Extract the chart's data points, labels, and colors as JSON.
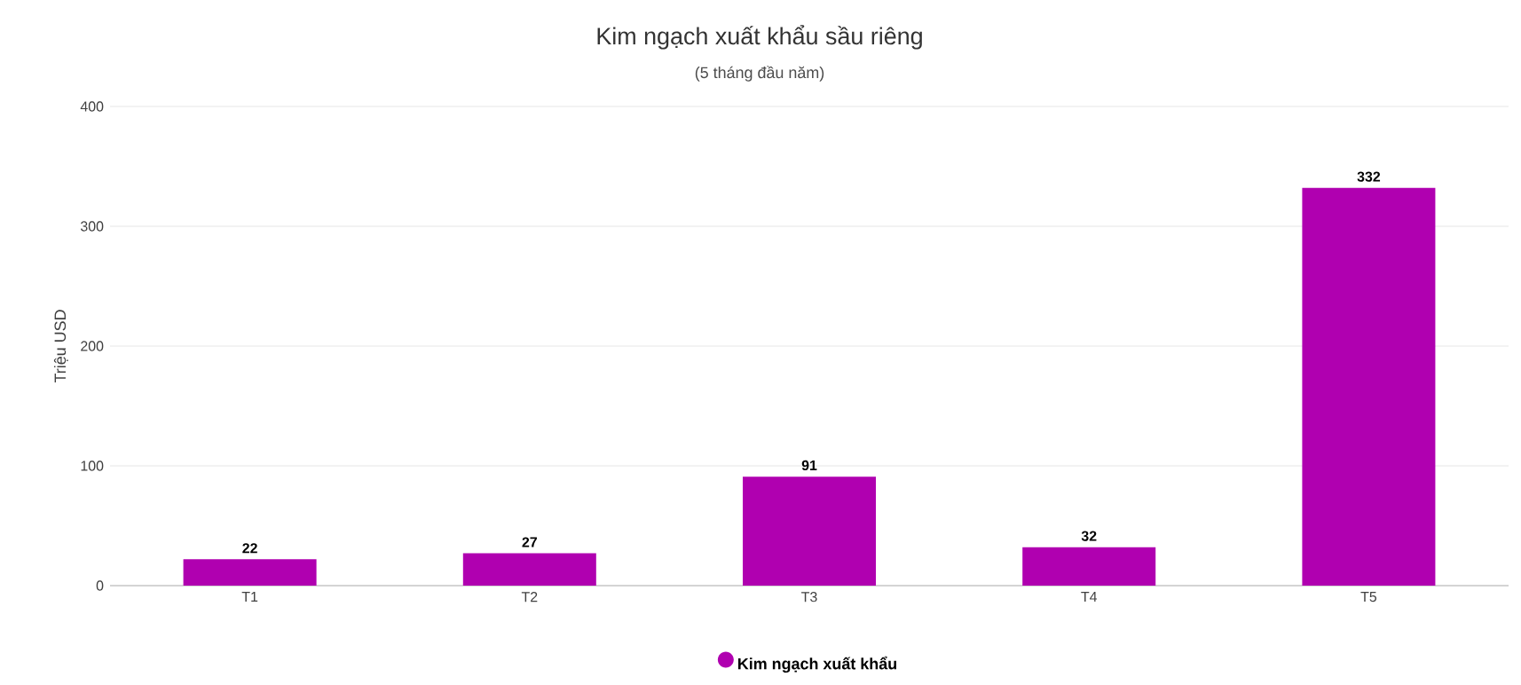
{
  "chart_data": {
    "type": "bar",
    "title": "Kim ngạch xuất khẩu sầu riêng",
    "subtitle": "(5 tháng đầu năm)",
    "ylabel": "Triệu USD",
    "categories": [
      "T1",
      "T2",
      "T3",
      "T4",
      "T5"
    ],
    "series": [
      {
        "name": "Kim ngạch xuất khẩu",
        "color": "#b000b0",
        "values": [
          22,
          27,
          91,
          32,
          332
        ]
      }
    ],
    "ylim": [
      0,
      400
    ],
    "yticks": [
      0,
      100,
      200,
      300,
      400
    ],
    "grid": "y",
    "legend": "bottom",
    "data_labels": true
  }
}
